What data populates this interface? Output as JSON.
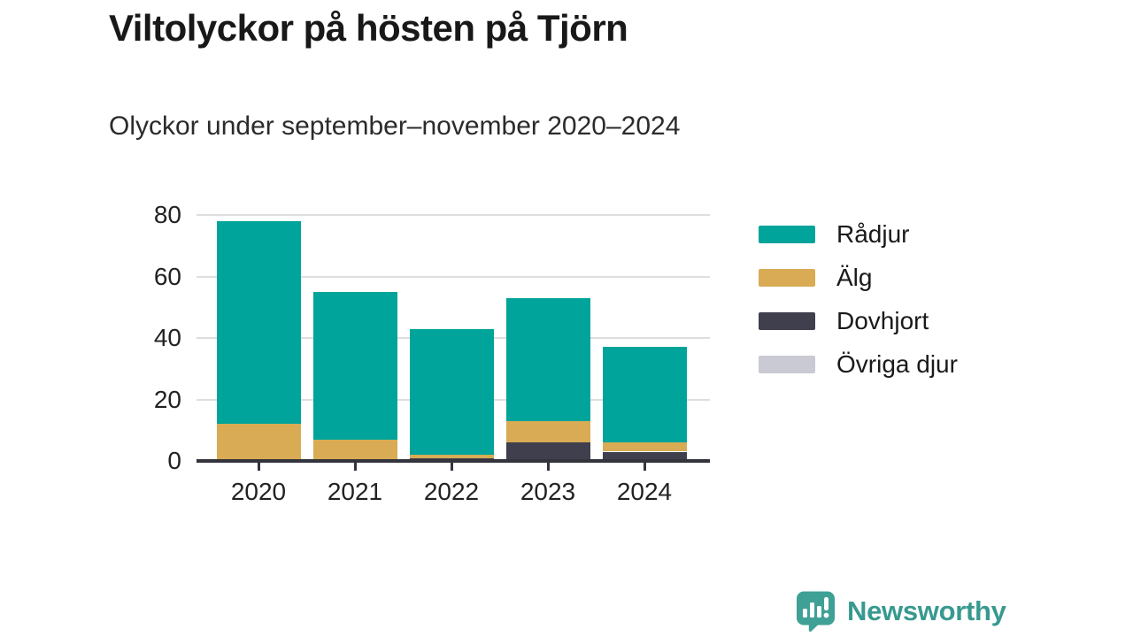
{
  "header": {
    "title": "Viltolyckor på hösten på Tjörn",
    "subtitle": "Olyckor under september–november 2020–2024"
  },
  "chart_data": {
    "type": "bar",
    "stacked": true,
    "title": "Viltolyckor på hösten på Tjörn",
    "subtitle": "Olyckor under september–november 2020–2024",
    "categories": [
      "2020",
      "2021",
      "2022",
      "2023",
      "2024"
    ],
    "series": [
      {
        "name": "Rådjur",
        "color": "#00a49a",
        "values": [
          66,
          48,
          41,
          40,
          31
        ]
      },
      {
        "name": "Älg",
        "color": "#d9ab55",
        "values": [
          12,
          7,
          1,
          7,
          3
        ]
      },
      {
        "name": "Dovhjort",
        "color": "#3f3f4d",
        "values": [
          0,
          0,
          1,
          6,
          3
        ]
      },
      {
        "name": "Övriga djur",
        "color": "#c9cad3",
        "values": [
          0,
          0,
          0,
          0,
          0
        ]
      }
    ],
    "stack_order_bottom_to_top": [
      "Övriga djur",
      "Dovhjort",
      "Älg",
      "Rådjur"
    ],
    "totals": [
      78,
      55,
      43,
      53,
      37
    ],
    "xlabel": "",
    "ylabel": "",
    "ylim": [
      0,
      80
    ],
    "yticks": [
      0,
      20,
      40,
      60,
      80
    ],
    "grid": "horizontal",
    "legend_position": "right",
    "axis_color": "#33343c",
    "gridline_color": "#dedede"
  },
  "branding": {
    "name": "Newsworthy",
    "color": "#37998f",
    "icon": "bar-chart-speech-bubble-icon"
  }
}
